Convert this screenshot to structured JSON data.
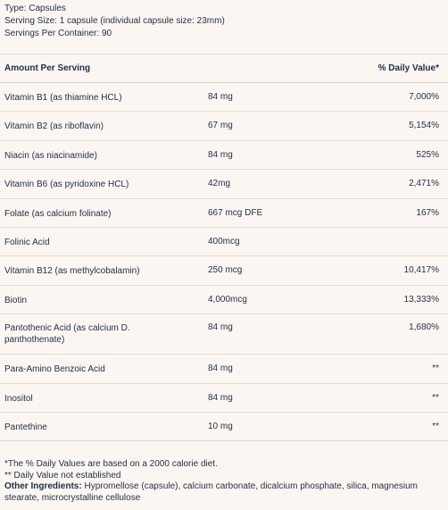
{
  "header": {
    "type": "Type: Capsules",
    "serving_size": "Serving Size: 1 capsule (individual capsule size: 23mm)",
    "servings_per_container": "Servings Per Container: 90"
  },
  "table": {
    "col_amount_per_serving": "Amount Per Serving",
    "col_daily_value": "% Daily Value*",
    "rows": [
      {
        "name": "Vitamin B1 (as thiamine HCL)",
        "amount": "84 mg",
        "dv": "7,000%"
      },
      {
        "name": "Vitamin B2 (as riboflavin)",
        "amount": "67 mg",
        "dv": "5,154%"
      },
      {
        "name": "Niacin (as niacinamide)",
        "amount": "84 mg",
        "dv": "525%"
      },
      {
        "name": "Vitamin B6 (as pyridoxine HCL)",
        "amount": "42mg",
        "dv": "2,471%"
      },
      {
        "name": "Folate (as calcium folinate)",
        "amount": "667 mcg DFE",
        "dv": "167%"
      },
      {
        "name": "Folinic Acid",
        "amount": "400mcg",
        "dv": ""
      },
      {
        "name": "Vitamin B12 (as methylcobalamin)",
        "amount": "250 mcg",
        "dv": "10,417%"
      },
      {
        "name": "Biotin",
        "amount": "4,000mcg",
        "dv": "13,333%"
      },
      {
        "name": "Pantothenic Acid (as calcium D. panthothenate)",
        "amount": "84 mg",
        "dv": "1,680%"
      },
      {
        "name": "Para-Amino Benzoic Acid",
        "amount": "84 mg",
        "dv": "**"
      },
      {
        "name": "Inositol",
        "amount": "84 mg",
        "dv": "**"
      },
      {
        "name": "Pantethine",
        "amount": "10 mg",
        "dv": "**"
      }
    ]
  },
  "footer": {
    "dv_note": "*The % Daily Values are based on a 2000 calorie diet.",
    "not_established_note": "** Daily Value not established",
    "other_ingredients_label": "Other Ingredients:",
    "other_ingredients_text": " Hypromellose (capsule), calcium carbonate, dicalcium phosphate, silica, magnesium stearate, microcrystalline cellulose"
  }
}
